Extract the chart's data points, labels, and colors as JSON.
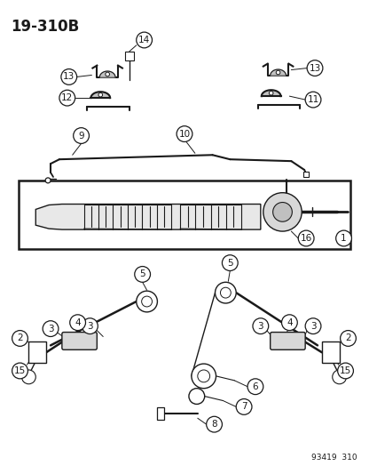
{
  "title": "19-310B",
  "footer": "93419  310",
  "bg": "#ffffff",
  "lc": "#1a1a1a",
  "gray": "#888888",
  "darkgray": "#444444",
  "figsize": [
    4.16,
    5.33
  ],
  "dpi": 100
}
